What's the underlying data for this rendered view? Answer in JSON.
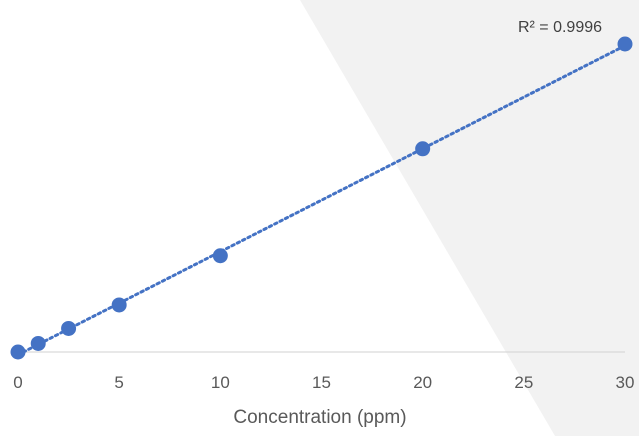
{
  "chart_data": {
    "type": "scatter",
    "title": "",
    "xlabel": "Concentration (ppm)",
    "ylabel": "",
    "xlim": [
      0,
      30
    ],
    "x_ticks": [
      "0",
      "5",
      "10",
      "15",
      "20",
      "25",
      "30"
    ],
    "grid": false,
    "series": [
      {
        "x": [
          0,
          1,
          2.5,
          5,
          10,
          20,
          30
        ],
        "y": [
          0,
          0.04,
          0.11,
          0.22,
          0.45,
          0.95,
          1.44
        ]
      }
    ],
    "trendline": {
      "type": "linear",
      "style": "dotted"
    },
    "annotation": "R² = 0.9996",
    "colors": {
      "series": "#4472C4",
      "axis": "#d9d9d9",
      "text": "#595959"
    }
  }
}
